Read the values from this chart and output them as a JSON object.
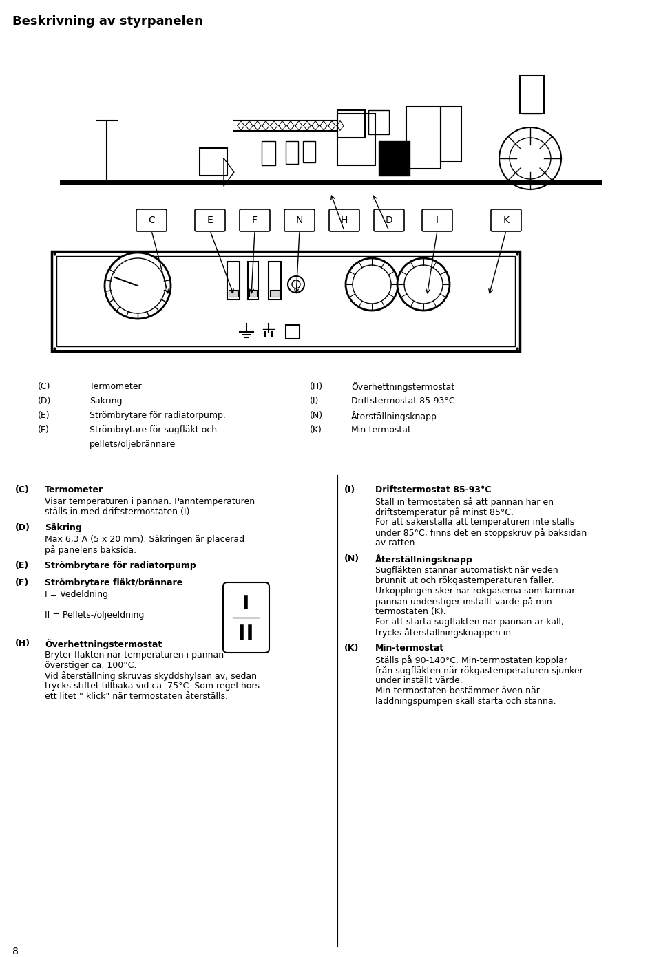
{
  "title": "Beskrivning av styrpanelen",
  "bg_color": "#ffffff",
  "text_color": "#000000",
  "page_number": "8",
  "legend_col1": [
    [
      "(C)",
      "Termometer"
    ],
    [
      "(D)",
      "Säkring"
    ],
    [
      "(E)",
      "Strömbrytare för radiatorpump."
    ],
    [
      "(F)",
      "Strömbrytare för sugfläkt och"
    ],
    [
      "",
      "pellets/oljebrännare"
    ]
  ],
  "legend_col2": [
    [
      "(H)",
      "Överhettningstermostat"
    ],
    [
      "(I)",
      "Driftstermostat 85-93°C"
    ],
    [
      "(N)",
      "Återställningsknapp"
    ],
    [
      "(K)",
      "Min-termostat"
    ],
    [
      "",
      ""
    ]
  ],
  "label_boxes": [
    "C",
    "E",
    "F",
    "N",
    "H",
    "D",
    "I",
    "K"
  ],
  "sections_left": [
    {
      "label": "(C)",
      "heading": "Termometer",
      "body": [
        "Visar temperaturen i pannan. Panntemperaturen",
        "ställs in med driftstermostaten (I)."
      ]
    },
    {
      "label": "(D)",
      "heading": "Säkring",
      "body": [
        "Max 6,3 A (5 x 20 mm). Säkringen är placerad",
        "på panelens baksida."
      ]
    },
    {
      "label": "(E)",
      "heading": "Strömbrytare för radiatorpump",
      "body": []
    },
    {
      "label": "(F)",
      "heading": "Strömbrytare fläkt/brännare",
      "body": [
        "I = Vedeldning",
        "",
        "II = Pellets-/oljeeldning"
      ],
      "has_switch": true
    },
    {
      "label": "(H)",
      "heading": "Överhettningstermostat",
      "body": [
        "Bryter fläkten när temperaturen i pannan",
        "överstiger ca. 100°C.",
        "Vid återställning skruvas skyddshylsan av, sedan",
        "trycks stiftet tillbaka vid ca. 75°C. Som regel hörs",
        "ett litet \" klick\" när termostaten återställs."
      ]
    }
  ],
  "sections_right": [
    {
      "label": "(I)",
      "heading": "Driftstermostat 85-93°C",
      "body": [
        "Ställ in termostaten så att pannan har en",
        "driftstemperatur på minst 85°C.",
        "För att säkerställa att temperaturen inte ställs",
        "under 85°C, finns det en stoppskruv på baksidan",
        "av ratten."
      ]
    },
    {
      "label": "(N)",
      "heading": "Återställningsknapp",
      "body": [
        "Sugfläkten stannar automatiskt när veden",
        "brunnit ut och rökgastemperaturen faller.",
        "Urkopplingen sker när rökgaserna som lämnar",
        "pannan understiger inställt värde på min-",
        "termostaten (K).",
        "För att starta sugfläkten när pannan är kall,",
        "trycks återställningsknappen in."
      ]
    },
    {
      "label": "(K)",
      "heading": "Min-termostat",
      "body": [
        "Ställs på 90-140°C. Min-termostaten kopplar",
        "från sugfläkten när rökgastemperaturen sjunker",
        "under inställt värde.",
        "Min-termostaten bestämmer även när",
        "laddningspumpen skall starta och stanna."
      ]
    }
  ]
}
